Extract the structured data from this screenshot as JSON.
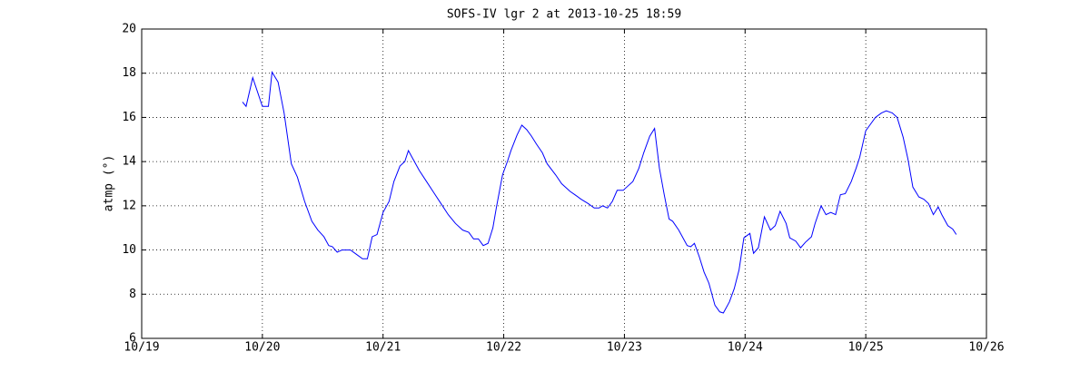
{
  "chart_data": {
    "type": "line",
    "title": "SOFS-IV lgr 2 at 2013-10-25 18:59",
    "y_label": "atmp (°)",
    "x": [
      19.835,
      19.865,
      19.92,
      20.0,
      20.05,
      20.08,
      20.13,
      20.18,
      20.24,
      20.29,
      20.35,
      20.41,
      20.46,
      20.51,
      20.55,
      20.58,
      20.62,
      20.66,
      20.73,
      20.78,
      20.83,
      20.87,
      20.91,
      20.95,
      21.0,
      21.05,
      21.09,
      21.14,
      21.18,
      21.21,
      21.25,
      21.3,
      21.36,
      21.42,
      21.48,
      21.54,
      21.6,
      21.66,
      21.71,
      21.75,
      21.79,
      21.83,
      21.87,
      21.91,
      21.94,
      21.99,
      22.03,
      22.06,
      22.11,
      22.15,
      22.19,
      22.23,
      22.27,
      22.32,
      22.36,
      22.43,
      22.48,
      22.55,
      22.59,
      22.64,
      22.7,
      22.75,
      22.79,
      22.82,
      22.86,
      22.9,
      22.94,
      22.99,
      23.03,
      23.07,
      23.12,
      23.16,
      23.21,
      23.25,
      23.29,
      23.33,
      23.37,
      23.4,
      23.45,
      23.49,
      23.52,
      23.55,
      23.58,
      23.62,
      23.66,
      23.7,
      23.75,
      23.79,
      23.82,
      23.87,
      23.91,
      23.95,
      23.99,
      24.04,
      24.07,
      24.11,
      24.16,
      24.21,
      24.25,
      24.29,
      24.34,
      24.37,
      24.42,
      24.46,
      24.5,
      24.55,
      24.58,
      24.63,
      24.67,
      24.71,
      24.75,
      24.79,
      24.83,
      24.88,
      24.92,
      24.95,
      25.0,
      25.04,
      25.08,
      25.13,
      25.17,
      25.22,
      25.26,
      25.31,
      25.35,
      25.39,
      25.44,
      25.48,
      25.52,
      25.56,
      25.6,
      25.63,
      25.68,
      25.72,
      25.75
    ],
    "series": [
      {
        "name": "atmp",
        "color": "#0000ff",
        "values": [
          16.7,
          16.5,
          17.8,
          16.5,
          16.5,
          18.05,
          17.6,
          16.2,
          13.9,
          13.3,
          12.2,
          11.3,
          10.9,
          10.6,
          10.2,
          10.15,
          9.9,
          10.0,
          10.0,
          9.8,
          9.6,
          9.6,
          10.6,
          10.7,
          11.7,
          12.2,
          13.1,
          13.8,
          14.0,
          14.5,
          14.1,
          13.6,
          13.1,
          12.6,
          12.1,
          11.6,
          11.2,
          10.9,
          10.8,
          10.5,
          10.5,
          10.2,
          10.3,
          11.0,
          11.95,
          13.4,
          14.0,
          14.5,
          15.2,
          15.65,
          15.45,
          15.15,
          14.8,
          14.4,
          13.9,
          13.4,
          13.0,
          12.65,
          12.5,
          12.3,
          12.1,
          11.9,
          11.9,
          12.0,
          11.9,
          12.2,
          12.7,
          12.7,
          12.9,
          13.1,
          13.7,
          14.4,
          15.15,
          15.5,
          13.7,
          12.5,
          11.4,
          11.3,
          10.9,
          10.5,
          10.2,
          10.15,
          10.3,
          9.7,
          9.0,
          8.5,
          7.5,
          7.2,
          7.15,
          7.65,
          8.25,
          9.1,
          10.55,
          10.75,
          9.85,
          10.1,
          11.5,
          10.9,
          11.1,
          11.75,
          11.2,
          10.55,
          10.4,
          10.1,
          10.35,
          10.6,
          11.2,
          12.0,
          11.6,
          11.7,
          11.6,
          12.5,
          12.55,
          13.1,
          13.7,
          14.2,
          15.4,
          15.7,
          16.0,
          16.2,
          16.3,
          16.2,
          16.0,
          15.1,
          14.1,
          12.85,
          12.4,
          12.3,
          12.1,
          11.6,
          11.95,
          11.6,
          11.1,
          10.95,
          10.7
        ]
      }
    ],
    "xlim": [
      19,
      26
    ],
    "xticks": [
      {
        "value": 19,
        "label": "10/19"
      },
      {
        "value": 20,
        "label": "10/20"
      },
      {
        "value": 21,
        "label": "10/21"
      },
      {
        "value": 22,
        "label": "10/22"
      },
      {
        "value": 23,
        "label": "10/23"
      },
      {
        "value": 24,
        "label": "10/24"
      },
      {
        "value": 25,
        "label": "10/25"
      },
      {
        "value": 26,
        "label": "10/26"
      }
    ],
    "ylim": [
      6,
      20
    ],
    "yticks": [
      6,
      8,
      10,
      12,
      14,
      16,
      18,
      20
    ],
    "grid": true
  }
}
